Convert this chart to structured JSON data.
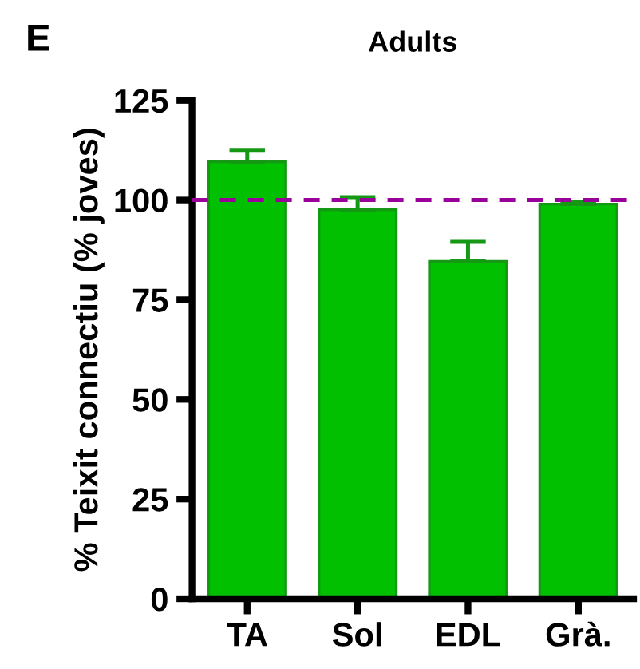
{
  "chart_data": {
    "type": "bar",
    "title": "Adults",
    "ylabel": "% Teixit connectiu (% joves)",
    "categories": [
      "TA",
      "Sol",
      "EDL",
      "Grà."
    ],
    "values": [
      109.6,
      97.6,
      84.6,
      99
    ],
    "errors": [
      [
        109.6,
        112.4
      ],
      [
        97.6,
        100.7
      ],
      [
        84.6,
        89.5
      ],
      [
        99,
        99.5
      ]
    ],
    "color": "#00c000",
    "ylim": [
      0,
      125
    ],
    "yticks": [
      0,
      25,
      50,
      75,
      100,
      125
    ],
    "ref_lines": [
      {
        "axis": "y",
        "value": 100,
        "color": "#990099",
        "line_style": "dashed"
      }
    ],
    "annotations": [
      "E"
    ],
    "grid": false,
    "legend": false
  }
}
